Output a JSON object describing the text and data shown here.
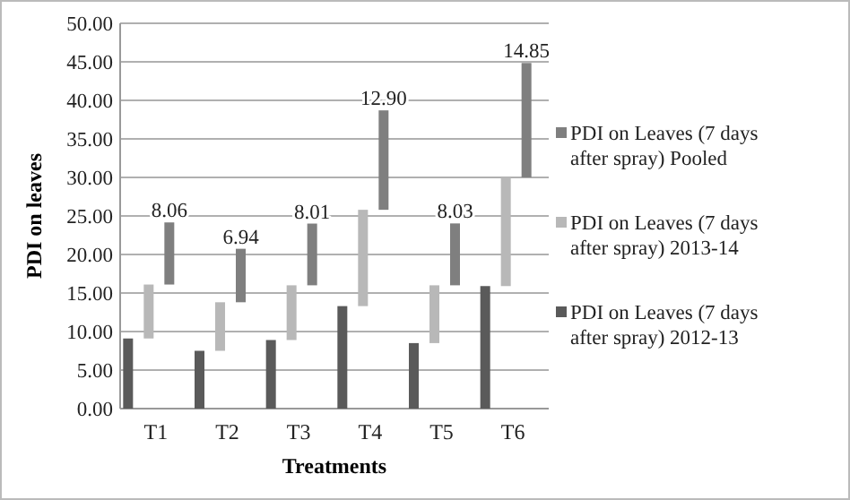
{
  "chart_data": {
    "type": "bar",
    "stacked": true,
    "xlabel": "Treatments",
    "ylabel": "PDI on leaves",
    "categories": [
      "T1",
      "T2",
      "T3",
      "T4",
      "T5",
      "T6"
    ],
    "series": [
      {
        "name": "PDI on Leaves (7 days after spray) 2012-13",
        "color": "#5a5a5a",
        "values": [
          9.1,
          7.5,
          8.9,
          13.3,
          8.5,
          15.9
        ]
      },
      {
        "name": "PDI on Leaves (7 days after spray) 2013-14",
        "color": "#b8b8b8",
        "values": [
          7.0,
          6.3,
          7.1,
          12.5,
          7.5,
          14.1
        ]
      },
      {
        "name": "PDI on Leaves (7 days after spray) Pooled",
        "color": "#7f7f7f",
        "values": [
          8.06,
          6.94,
          8.01,
          12.9,
          8.03,
          14.85
        ],
        "value_labels": [
          "8.06",
          "6.94",
          "8.01",
          "12.90",
          "8.03",
          "14.85"
        ]
      }
    ],
    "ylim": [
      0,
      50
    ],
    "yticks": [
      {
        "value": 0,
        "label": "0.00"
      },
      {
        "value": 5,
        "label": "5.00"
      },
      {
        "value": 10,
        "label": "10.00"
      },
      {
        "value": 15,
        "label": "15.00"
      },
      {
        "value": 20,
        "label": "20.00"
      },
      {
        "value": 25,
        "label": "25.00"
      },
      {
        "value": 30,
        "label": "30.00"
      },
      {
        "value": 35,
        "label": "35.00"
      },
      {
        "value": 40,
        "label": "40.00"
      },
      {
        "value": 45,
        "label": "45.00"
      },
      {
        "value": 50,
        "label": "50.00"
      }
    ],
    "grid": "y",
    "legend": "right"
  }
}
